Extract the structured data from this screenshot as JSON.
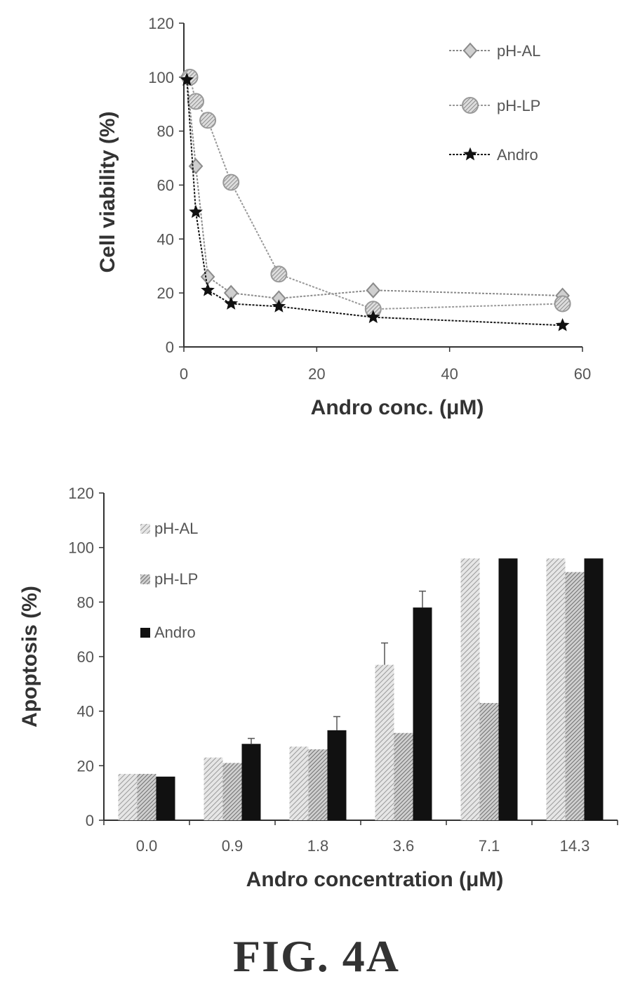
{
  "figure_label": "FIG. 4A",
  "chart_data": [
    {
      "type": "line",
      "xlabel": "Andro conc. (μM)",
      "ylabel": "Cell viability (%)",
      "xlim": [
        0,
        60
      ],
      "ylim": [
        0,
        120
      ],
      "x_ticks": [
        "0",
        "20",
        "40",
        "60"
      ],
      "y_ticks": [
        "0",
        "20",
        "40",
        "60",
        "80",
        "100",
        "120"
      ],
      "legend_position": "top-right",
      "grid": false,
      "series": [
        {
          "name": "pH-AL",
          "marker": "diamond",
          "color": "#8a8a8a",
          "points": [
            [
              0.45,
              100
            ],
            [
              1.8,
              67
            ],
            [
              3.6,
              26
            ],
            [
              7.1,
              20
            ],
            [
              14.3,
              18
            ],
            [
              28.5,
              21
            ],
            [
              57,
              19
            ]
          ]
        },
        {
          "name": "pH-LP",
          "marker": "circle-hatched",
          "color": "#999999",
          "points": [
            [
              0.9,
              100
            ],
            [
              1.8,
              91
            ],
            [
              3.6,
              84
            ],
            [
              7.1,
              61
            ],
            [
              14.3,
              27
            ],
            [
              28.5,
              14
            ],
            [
              57,
              16
            ]
          ]
        },
        {
          "name": "Andro",
          "marker": "star",
          "color": "#111111",
          "points": [
            [
              0.45,
              99
            ],
            [
              1.8,
              50
            ],
            [
              3.6,
              21
            ],
            [
              7.1,
              16
            ],
            [
              14.3,
              15
            ],
            [
              28.5,
              11
            ],
            [
              57,
              8
            ]
          ]
        }
      ]
    },
    {
      "type": "bar",
      "xlabel": "Andro concentration (μM)",
      "ylabel": "Apoptosis (%)",
      "ylim": [
        0,
        120
      ],
      "y_ticks": [
        "0",
        "20",
        "40",
        "60",
        "80",
        "100",
        "120"
      ],
      "categories": [
        "0.0",
        "0.9",
        "1.8",
        "3.6",
        "7.1",
        "14.3"
      ],
      "legend_position": "top-left",
      "grid": false,
      "series": [
        {
          "name": "pH-AL",
          "fill": "hatched-light",
          "values": [
            17,
            23,
            27,
            57,
            96,
            96
          ],
          "error": [
            0,
            0,
            0,
            8,
            0,
            0
          ]
        },
        {
          "name": "pH-LP",
          "fill": "hatched-mid",
          "values": [
            17,
            21,
            26,
            32,
            43,
            91
          ],
          "error": [
            0,
            0,
            0,
            0,
            0,
            0
          ]
        },
        {
          "name": "Andro",
          "fill": "solid-black",
          "values": [
            16,
            28,
            33,
            78,
            96,
            96
          ],
          "error": [
            0,
            2,
            5,
            6,
            0,
            0
          ]
        }
      ]
    }
  ]
}
